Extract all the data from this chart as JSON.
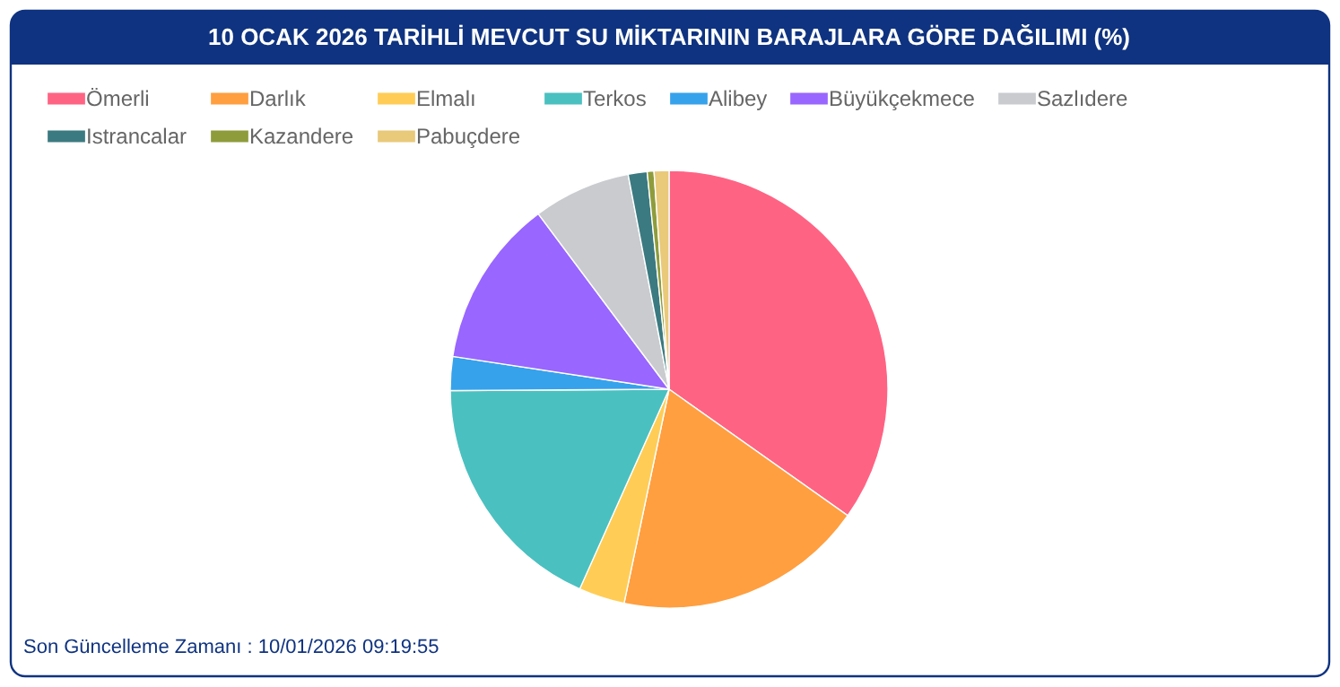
{
  "chart_data": {
    "type": "pie",
    "title": "10 OCAK 2026 TARİHLİ MEVCUT SU MİKTARININ BARAJLARA GÖRE DAĞILIMI (%)",
    "categories": [
      "Ömerli",
      "Darlık",
      "Elmalı",
      "Terkos",
      "Alibey",
      "Büyükçekmece",
      "Sazlıdere",
      "Istrancalar",
      "Kazandere",
      "Pabuçdere"
    ],
    "values": [
      34.8,
      18.5,
      3.4,
      18.2,
      2.5,
      12.4,
      7.2,
      1.4,
      0.5,
      1.1
    ],
    "colors": [
      "#ff6384",
      "#ff9f40",
      "#ffcd56",
      "#4bc0c0",
      "#36a2eb",
      "#9966ff",
      "#c9cbcf",
      "#3b7a80",
      "#8f9c3c",
      "#e9c97a"
    ],
    "legend": "top",
    "annotations": [
      "Son Güncelleme Zamanı : 10/01/2026 09:19:55"
    ]
  }
}
